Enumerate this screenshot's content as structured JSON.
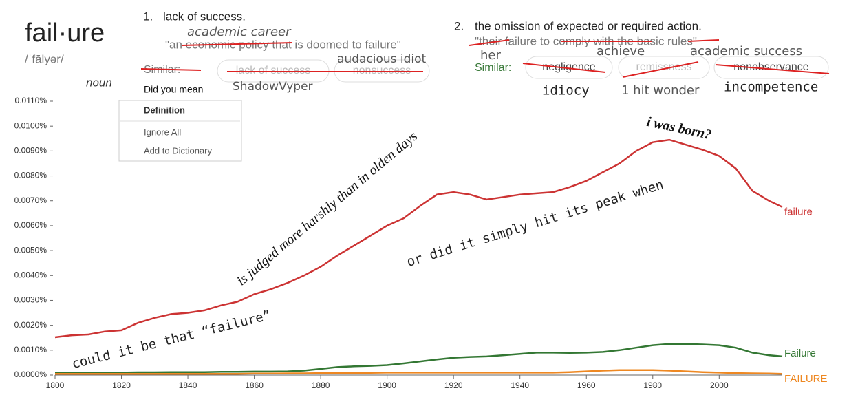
{
  "dictionary": {
    "word": "fail·ure",
    "pronunciation": "/ˈfālyər/",
    "part_of_speech": "noun",
    "definitions": [
      {
        "number": "1.",
        "text": "lack of success.",
        "example": "\"an economic policy that is doomed to failure\"",
        "similar_label": "Similar:",
        "similar": [
          "lack of success",
          "nonsuccess"
        ]
      },
      {
        "number": "2.",
        "text": "the omission of expected or required action.",
        "example": "\"their failure to comply with the basic rules\"",
        "similar_label": "Similar:",
        "similar": [
          "negligence",
          "remissness",
          "nonobservance"
        ]
      }
    ],
    "handwritten": [
      "academic career",
      "audacious idiot",
      "ShadowVyper",
      "her",
      "achieve",
      "academic success",
      "idiocy",
      "1 hit wonder",
      "incompetence"
    ],
    "spellcheck_menu": {
      "prompt": "Did you mean",
      "items": [
        "Definition",
        "Ignore All",
        "Add to Dictionary"
      ]
    }
  },
  "chart_data": {
    "type": "line",
    "x": [
      1800,
      1805,
      1810,
      1815,
      1820,
      1825,
      1830,
      1835,
      1840,
      1845,
      1850,
      1855,
      1860,
      1865,
      1870,
      1875,
      1880,
      1885,
      1890,
      1895,
      1900,
      1905,
      1910,
      1915,
      1920,
      1925,
      1930,
      1935,
      1940,
      1945,
      1950,
      1955,
      1960,
      1965,
      1970,
      1975,
      1980,
      1985,
      1990,
      1995,
      2000,
      2005,
      2010,
      2015,
      2019
    ],
    "series": [
      {
        "name": "failure",
        "color": "#cc3333",
        "values": [
          0.00152,
          0.0016,
          0.00163,
          0.00175,
          0.0018,
          0.0021,
          0.0023,
          0.00245,
          0.0025,
          0.0026,
          0.0028,
          0.00295,
          0.00325,
          0.00345,
          0.0037,
          0.004,
          0.00435,
          0.0048,
          0.0052,
          0.0056,
          0.006,
          0.0063,
          0.0068,
          0.00725,
          0.00735,
          0.00725,
          0.00705,
          0.00715,
          0.00725,
          0.0073,
          0.00735,
          0.00755,
          0.0078,
          0.00815,
          0.0085,
          0.009,
          0.00935,
          0.00945,
          0.00925,
          0.00905,
          0.0088,
          0.0083,
          0.0074,
          0.007,
          0.00675
        ]
      },
      {
        "name": "Failure",
        "color": "#337733",
        "values": [
          0.0001,
          0.0001,
          0.0001,
          0.0001,
          0.0001,
          0.00011,
          0.00011,
          0.00012,
          0.00012,
          0.00012,
          0.00013,
          0.00013,
          0.00014,
          0.00014,
          0.00015,
          0.00018,
          0.00025,
          0.00032,
          0.00035,
          0.00037,
          0.0004,
          0.00047,
          0.00055,
          0.00063,
          0.0007,
          0.00073,
          0.00075,
          0.0008,
          0.00085,
          0.0009,
          0.0009,
          0.00089,
          0.0009,
          0.00093,
          0.001,
          0.0011,
          0.0012,
          0.00125,
          0.00125,
          0.00123,
          0.0012,
          0.0011,
          0.0009,
          0.0008,
          0.00075
        ]
      },
      {
        "name": "FAILURE",
        "color": "#ee8822",
        "values": [
          5e-05,
          5e-05,
          5e-05,
          5e-05,
          5e-05,
          5e-05,
          5e-05,
          5e-05,
          5e-05,
          5e-05,
          5e-05,
          5e-05,
          6e-05,
          6e-05,
          7e-05,
          7e-05,
          8e-05,
          8e-05,
          9e-05,
          9e-05,
          0.0001,
          0.0001,
          0.0001,
          0.0001,
          0.0001,
          0.0001,
          0.0001,
          0.0001,
          0.0001,
          0.0001,
          0.0001,
          0.00012,
          0.00015,
          0.00018,
          0.0002,
          0.0002,
          0.0002,
          0.00018,
          0.00015,
          0.00012,
          0.0001,
          8e-05,
          7e-05,
          6e-05,
          5e-05
        ]
      }
    ],
    "xlim": [
      1800,
      2019
    ],
    "xticks": [
      1800,
      1820,
      1840,
      1860,
      1880,
      1900,
      1920,
      1940,
      1960,
      1980,
      2000
    ],
    "ylim": [
      0,
      0.011
    ],
    "yticks": [
      {
        "value": 0,
        "label": "0.0000%"
      },
      {
        "value": 0.001,
        "label": "0.0010%"
      },
      {
        "value": 0.002,
        "label": "0.0020%"
      },
      {
        "value": 0.003,
        "label": "0.0030%"
      },
      {
        "value": 0.004,
        "label": "0.0040%"
      },
      {
        "value": 0.005,
        "label": "0.0050%"
      },
      {
        "value": 0.006,
        "label": "0.0060%"
      },
      {
        "value": 0.007,
        "label": "0.0070%"
      },
      {
        "value": 0.008,
        "label": "0.0080%"
      },
      {
        "value": 0.009,
        "label": "0.0090%"
      },
      {
        "value": 0.01,
        "label": "0.0100%"
      },
      {
        "value": 0.011,
        "label": "0.0110%"
      }
    ],
    "annotations": [
      "could it be that  “failure”",
      "is judged more harshly than in olden days",
      "or did it simply hit its peak when",
      "i was born?"
    ]
  }
}
